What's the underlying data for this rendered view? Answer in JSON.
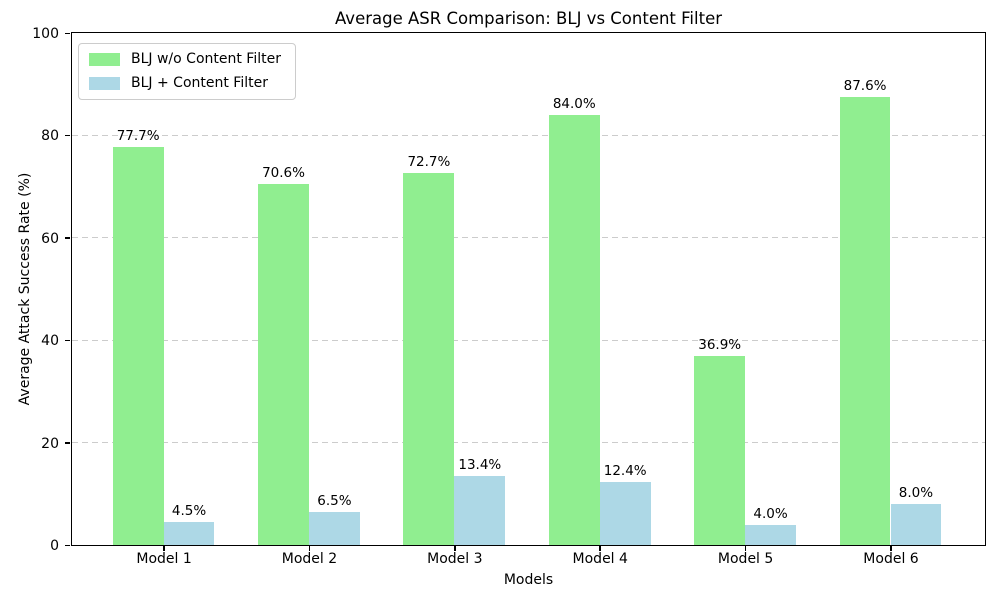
{
  "chart_data": {
    "type": "bar",
    "title": "Average ASR Comparison: BLJ vs Content Filter",
    "xlabel": "Models",
    "ylabel": "Average Attack Success Rate (%)",
    "categories": [
      "Model 1",
      "Model 2",
      "Model 3",
      "Model 4",
      "Model 5",
      "Model 6"
    ],
    "series": [
      {
        "name": "BLJ w/o Content Filter",
        "color": "#90EE90",
        "values": [
          77.7,
          70.6,
          72.7,
          84.0,
          36.9,
          87.6
        ],
        "labels": [
          "77.7%",
          "70.6%",
          "72.7%",
          "84.0%",
          "36.9%",
          "87.6%"
        ]
      },
      {
        "name": "BLJ + Content Filter",
        "color": "#ADD8E6",
        "values": [
          4.5,
          6.5,
          13.4,
          12.4,
          4.0,
          8.0
        ],
        "labels": [
          "4.5%",
          "6.5%",
          "13.4%",
          "12.4%",
          "4.0%",
          "8.0%"
        ]
      }
    ],
    "ylim": [
      0,
      100
    ],
    "yticks": [
      0,
      20,
      40,
      60,
      80,
      100
    ],
    "xlim": [
      -0.63,
      5.65
    ],
    "bar_width": 0.35,
    "grid": {
      "axis": "y",
      "style": "dashed",
      "color": "#cccccc"
    },
    "legend_position": "upper left",
    "colors": {
      "background": "#ffffff",
      "spine": "#000000",
      "text": "#000000"
    }
  }
}
